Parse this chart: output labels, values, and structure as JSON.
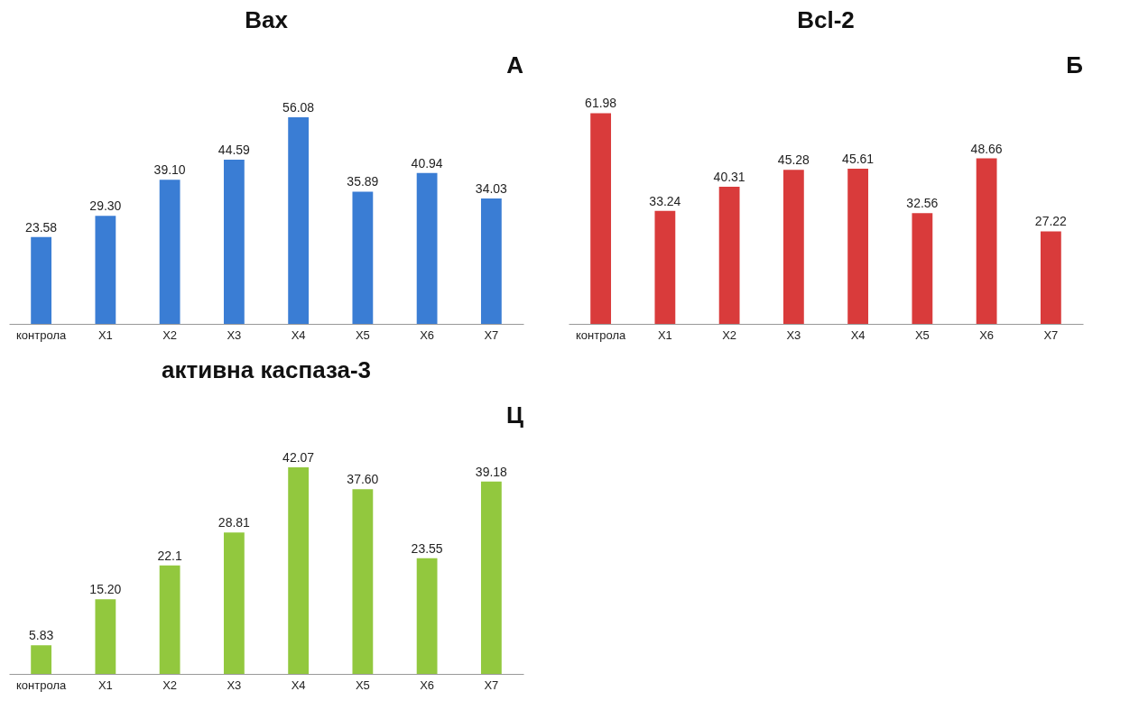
{
  "chart_data": [
    {
      "type": "bar",
      "title": "Bax",
      "annotations": [
        "А"
      ],
      "categories": [
        "контрола",
        "X1",
        "X2",
        "X3",
        "X4",
        "X5",
        "X6",
        "X7"
      ],
      "values": [
        23.58,
        29.3,
        39.1,
        44.59,
        56.08,
        35.89,
        40.94,
        34.03
      ],
      "value_labels": [
        "23.58",
        "29.30",
        "39.10",
        "44.59",
        "56.08",
        "35.89",
        "40.94",
        "34.03"
      ],
      "color": "#3a7dd4"
    },
    {
      "type": "bar",
      "title": "Bcl-2",
      "annotations": [
        "Б"
      ],
      "categories": [
        "контрола",
        "X1",
        "X2",
        "X3",
        "X4",
        "X5",
        "X6",
        "X7"
      ],
      "values": [
        61.98,
        33.24,
        40.31,
        45.28,
        45.61,
        32.56,
        48.66,
        27.22
      ],
      "data_labels": true,
      "color": "#d93b3b"
    },
    {
      "type": "bar",
      "title": "активна каспаза-3",
      "annotations": [
        "Ц"
      ],
      "categories": [
        "контрола",
        "X1",
        "X2",
        "X3",
        "X4",
        "X5",
        "X6",
        "X7"
      ],
      "values": [
        5.83,
        15.2,
        22.1,
        28.81,
        42.07,
        37.6,
        23.55,
        39.18
      ],
      "value_labels": [
        "5.83",
        "15.20",
        "22.1",
        "28.81",
        "42.07",
        "37.60",
        "23.55",
        "39.18"
      ],
      "color": "#92c83e"
    }
  ]
}
